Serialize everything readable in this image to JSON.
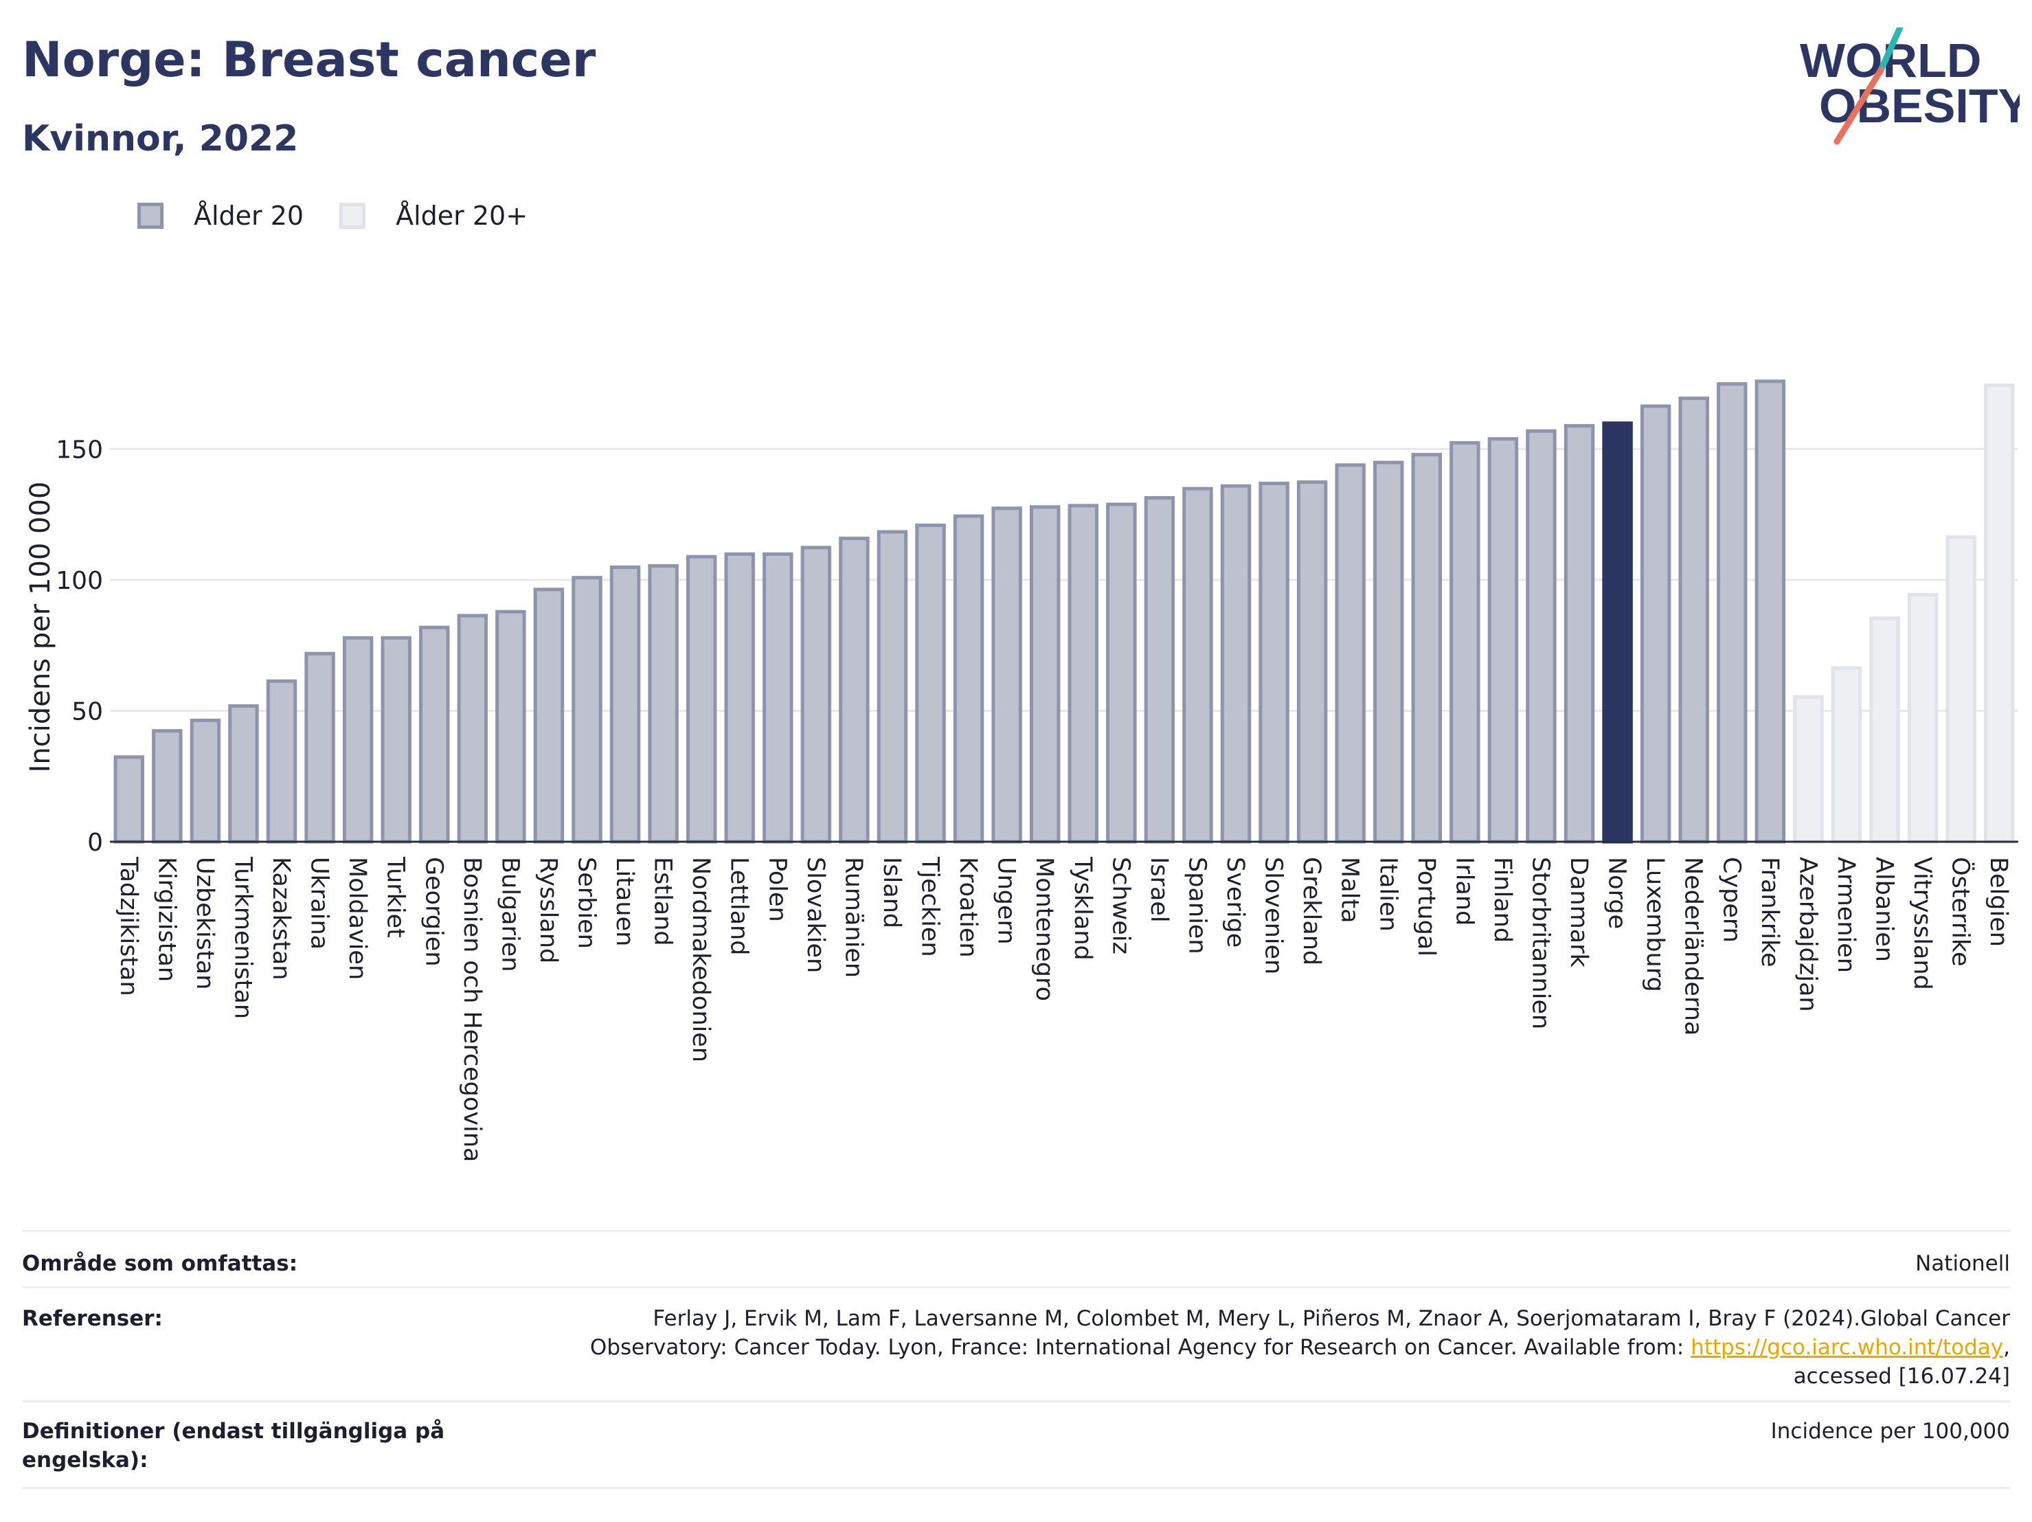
{
  "header": {
    "title": "Norge: Breast cancer",
    "subtitle": "Kvinnor, 2022"
  },
  "logo": {
    "line1": "WORLD",
    "line2": "OBESITY"
  },
  "legend": [
    {
      "label": "Ålder 20",
      "color": "#bec2cf"
    },
    {
      "label": "Ålder 20+",
      "color": "#eeeff3"
    }
  ],
  "colors": {
    "age20": "#bec2cf",
    "age20_border": "#8e94ad",
    "age20plus": "#eeeff3",
    "age20plus_border": "#e1e3ea",
    "highlight": "#2a3561"
  },
  "chart_data": {
    "type": "bar",
    "ylabel": "Incidens per 100 000",
    "ylim": [
      0,
      185
    ],
    "yticks": [
      0,
      50,
      100,
      150
    ],
    "grid": true,
    "legend_position": "top-left",
    "highlight": "Norge",
    "categories": [
      "Tadzjikistan",
      "Kirgizistan",
      "Uzbekistan",
      "Turkmenistan",
      "Kazakstan",
      "Ukraina",
      "Moldavien",
      "Turkiet",
      "Georgien",
      "Bosnien och Hercegovina",
      "Bulgarien",
      "Ryssland",
      "Serbien",
      "Litauen",
      "Estland",
      "Nordmakedonien",
      "Lettland",
      "Polen",
      "Slovakien",
      "Rumänien",
      "Island",
      "Tjeckien",
      "Kroatien",
      "Ungern",
      "Montenegro",
      "Tyskland",
      "Schweiz",
      "Israel",
      "Spanien",
      "Sverige",
      "Slovenien",
      "Grekland",
      "Malta",
      "Italien",
      "Portugal",
      "Irland",
      "Finland",
      "Storbritannien",
      "Danmark",
      "Norge",
      "Luxemburg",
      "Nederländerna",
      "Cypern",
      "Frankrike",
      "Azerbajdzjan",
      "Armenien",
      "Albanien",
      "Vitryssland",
      "Österrike",
      "Belgien"
    ],
    "values": [
      33,
      43,
      47,
      52.5,
      62,
      72.5,
      78.5,
      78.5,
      82.5,
      87,
      88.5,
      97,
      101.5,
      105.5,
      106,
      109.5,
      110.5,
      110.5,
      113,
      116.5,
      119,
      121.5,
      125,
      128,
      128.5,
      129,
      129.5,
      132,
      135.5,
      136.5,
      137.5,
      138,
      144.5,
      145.5,
      148.5,
      153,
      154.5,
      157.5,
      159.5,
      160.5,
      167,
      170,
      175.5,
      176.5,
      56,
      67,
      86,
      95,
      117,
      175
    ],
    "series_group": [
      "Ålder 20",
      "Ålder 20",
      "Ålder 20",
      "Ålder 20",
      "Ålder 20",
      "Ålder 20",
      "Ålder 20",
      "Ålder 20",
      "Ålder 20",
      "Ålder 20",
      "Ålder 20",
      "Ålder 20",
      "Ålder 20",
      "Ålder 20",
      "Ålder 20",
      "Ålder 20",
      "Ålder 20",
      "Ålder 20",
      "Ålder 20",
      "Ålder 20",
      "Ålder 20",
      "Ålder 20",
      "Ålder 20",
      "Ålder 20",
      "Ålder 20",
      "Ålder 20",
      "Ålder 20",
      "Ålder 20",
      "Ålder 20",
      "Ålder 20",
      "Ålder 20",
      "Ålder 20",
      "Ålder 20",
      "Ålder 20",
      "Ålder 20",
      "Ålder 20",
      "Ålder 20",
      "Ålder 20",
      "Ålder 20",
      "Ålder 20",
      "Ålder 20",
      "Ålder 20",
      "Ålder 20",
      "Ålder 20",
      "Ålder 20+",
      "Ålder 20+",
      "Ålder 20+",
      "Ålder 20+",
      "Ålder 20+",
      "Ålder 20+"
    ]
  },
  "meta": {
    "coverage_label": "Område som omfattas:",
    "coverage_value": "Nationell",
    "refs_label": "Referenser:",
    "refs_line1": "Ferlay J, Ervik M, Lam F, Laversanne M, Colombet M, Mery L, Piñeros M, Znaor A, Soerjomataram I, Bray F (2024).Global Cancer",
    "refs_line2_pre": "Observatory: Cancer Today. Lyon, France: International Agency for Research on Cancer. Available from: ",
    "refs_link": "https://gco.iarc.who.int/today",
    "refs_line2_post": ",",
    "refs_line3": "accessed [16.07.24]",
    "defs_label": "Definitioner (endast tillgängliga på engelska):",
    "defs_value": "Incidence per 100,000"
  }
}
